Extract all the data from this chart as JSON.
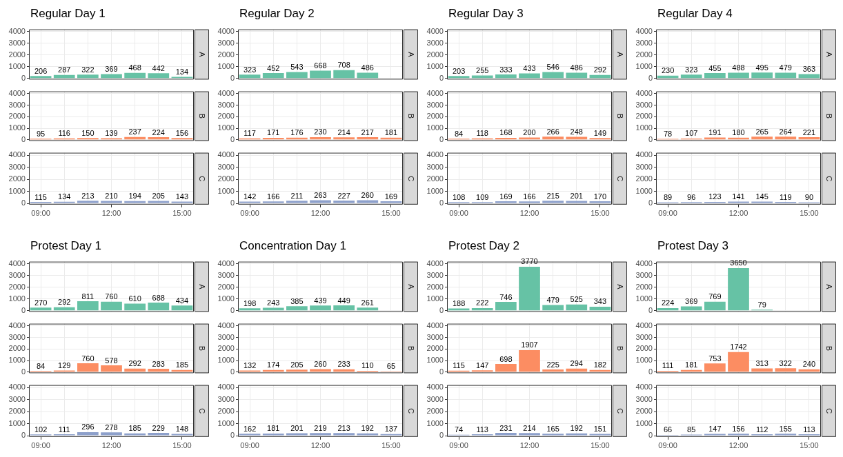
{
  "chart_data": [
    {
      "type": "bar",
      "title": "Regular Day 1",
      "y2label": "A",
      "categories": [
        null,
        null,
        null,
        null,
        null,
        null,
        null
      ],
      "values": [
        206,
        287,
        322,
        369,
        468,
        442,
        134
      ],
      "color": "#66c2a5",
      "ylim": [
        -100,
        4200
      ],
      "yticks": [
        0,
        1000,
        2000,
        3000,
        4000
      ],
      "data_labels": true,
      "grid": true
    },
    {
      "type": "bar",
      "y2label": "B",
      "categories": [
        null,
        null,
        null,
        null,
        null,
        null,
        null
      ],
      "values": [
        95,
        116,
        150,
        139,
        237,
        224,
        156
      ],
      "color": "#fc8d62",
      "ylim": [
        -100,
        4200
      ],
      "yticks": [
        0,
        1000,
        2000,
        3000,
        4000
      ],
      "data_labels": true,
      "grid": true
    },
    {
      "type": "bar",
      "y2label": "C",
      "categories": [
        "09:00",
        null,
        null,
        "12:00",
        null,
        null,
        "15:00"
      ],
      "values": [
        115,
        134,
        213,
        210,
        194,
        205,
        143
      ],
      "color": "#8da0cb",
      "ylim": [
        -100,
        4200
      ],
      "yticks": [
        0,
        1000,
        2000,
        3000,
        4000
      ],
      "data_labels": true,
      "grid": true
    },
    {
      "type": "bar",
      "title": "Regular Day 2",
      "y2label": "A",
      "categories": [
        null,
        null,
        null,
        null,
        null,
        null,
        null
      ],
      "values": [
        323,
        452,
        543,
        668,
        708,
        486,
        null
      ],
      "color": "#66c2a5",
      "ylim": [
        -100,
        4200
      ],
      "yticks": [
        0,
        1000,
        2000,
        3000,
        4000
      ],
      "data_labels": true,
      "grid": true
    },
    {
      "type": "bar",
      "y2label": "B",
      "categories": [
        null,
        null,
        null,
        null,
        null,
        null,
        null
      ],
      "values": [
        117,
        171,
        176,
        230,
        214,
        217,
        181
      ],
      "color": "#fc8d62",
      "ylim": [
        -100,
        4200
      ],
      "yticks": [
        0,
        1000,
        2000,
        3000,
        4000
      ],
      "data_labels": true,
      "grid": true
    },
    {
      "type": "bar",
      "y2label": "C",
      "categories": [
        "09:00",
        null,
        null,
        "12:00",
        null,
        null,
        "15:00"
      ],
      "values": [
        142,
        166,
        211,
        263,
        227,
        260,
        169
      ],
      "color": "#8da0cb",
      "ylim": [
        -100,
        4200
      ],
      "yticks": [
        0,
        1000,
        2000,
        3000,
        4000
      ],
      "data_labels": true,
      "grid": true
    },
    {
      "type": "bar",
      "title": "Regular Day 3",
      "y2label": "A",
      "categories": [
        null,
        null,
        null,
        null,
        null,
        null,
        null
      ],
      "values": [
        203,
        255,
        333,
        433,
        546,
        486,
        292
      ],
      "color": "#66c2a5",
      "ylim": [
        -100,
        4200
      ],
      "yticks": [
        0,
        1000,
        2000,
        3000,
        4000
      ],
      "data_labels": true,
      "grid": true
    },
    {
      "type": "bar",
      "y2label": "B",
      "categories": [
        null,
        null,
        null,
        null,
        null,
        null,
        null
      ],
      "values": [
        84,
        118,
        168,
        200,
        266,
        248,
        149
      ],
      "color": "#fc8d62",
      "ylim": [
        -100,
        4200
      ],
      "yticks": [
        0,
        1000,
        2000,
        3000,
        4000
      ],
      "data_labels": true,
      "grid": true
    },
    {
      "type": "bar",
      "y2label": "C",
      "categories": [
        "09:00",
        null,
        null,
        "12:00",
        null,
        null,
        "15:00"
      ],
      "values": [
        108,
        109,
        169,
        166,
        215,
        201,
        170
      ],
      "color": "#8da0cb",
      "ylim": [
        -100,
        4200
      ],
      "yticks": [
        0,
        1000,
        2000,
        3000,
        4000
      ],
      "data_labels": true,
      "grid": true
    },
    {
      "type": "bar",
      "title": "Regular Day 4",
      "y2label": "A",
      "categories": [
        null,
        null,
        null,
        null,
        null,
        null,
        null
      ],
      "values": [
        230,
        323,
        455,
        488,
        495,
        479,
        363
      ],
      "color": "#66c2a5",
      "ylim": [
        -100,
        4200
      ],
      "yticks": [
        0,
        1000,
        2000,
        3000,
        4000
      ],
      "data_labels": true,
      "grid": true
    },
    {
      "type": "bar",
      "y2label": "B",
      "categories": [
        null,
        null,
        null,
        null,
        null,
        null,
        null
      ],
      "values": [
        78,
        107,
        191,
        180,
        265,
        264,
        221
      ],
      "color": "#fc8d62",
      "ylim": [
        -100,
        4200
      ],
      "yticks": [
        0,
        1000,
        2000,
        3000,
        4000
      ],
      "data_labels": true,
      "grid": true
    },
    {
      "type": "bar",
      "y2label": "C",
      "categories": [
        "09:00",
        null,
        null,
        "12:00",
        null,
        null,
        "15:00"
      ],
      "values": [
        89,
        96,
        123,
        141,
        145,
        119,
        90
      ],
      "color": "#8da0cb",
      "ylim": [
        -100,
        4200
      ],
      "yticks": [
        0,
        1000,
        2000,
        3000,
        4000
      ],
      "data_labels": true,
      "grid": true
    },
    {
      "type": "bar",
      "title": "Protest Day 1",
      "y2label": "A",
      "categories": [
        null,
        null,
        null,
        null,
        null,
        null,
        null
      ],
      "values": [
        270,
        292,
        811,
        760,
        610,
        688,
        434
      ],
      "color": "#66c2a5",
      "ylim": [
        -100,
        4200
      ],
      "yticks": [
        0,
        1000,
        2000,
        3000,
        4000
      ],
      "data_labels": true,
      "grid": true
    },
    {
      "type": "bar",
      "y2label": "B",
      "categories": [
        null,
        null,
        null,
        null,
        null,
        null,
        null
      ],
      "values": [
        84,
        129,
        760,
        578,
        292,
        283,
        185
      ],
      "color": "#fc8d62",
      "ylim": [
        -100,
        4200
      ],
      "yticks": [
        0,
        1000,
        2000,
        3000,
        4000
      ],
      "data_labels": true,
      "grid": true
    },
    {
      "type": "bar",
      "y2label": "C",
      "categories": [
        "09:00",
        null,
        null,
        "12:00",
        null,
        null,
        "15:00"
      ],
      "values": [
        102,
        111,
        296,
        278,
        185,
        229,
        148
      ],
      "color": "#8da0cb",
      "ylim": [
        -100,
        4200
      ],
      "yticks": [
        0,
        1000,
        2000,
        3000,
        4000
      ],
      "data_labels": true,
      "grid": true
    },
    {
      "type": "bar",
      "title": "Concentration Day 1",
      "y2label": "A",
      "categories": [
        null,
        null,
        null,
        null,
        null,
        null,
        null
      ],
      "values": [
        198,
        243,
        385,
        439,
        449,
        261,
        null
      ],
      "color": "#66c2a5",
      "ylim": [
        -100,
        4200
      ],
      "yticks": [
        0,
        1000,
        2000,
        3000,
        4000
      ],
      "data_labels": true,
      "grid": true
    },
    {
      "type": "bar",
      "y2label": "B",
      "categories": [
        null,
        null,
        null,
        null,
        null,
        null,
        null
      ],
      "values": [
        132,
        174,
        205,
        260,
        233,
        110,
        65
      ],
      "color": "#fc8d62",
      "ylim": [
        -100,
        4200
      ],
      "yticks": [
        0,
        1000,
        2000,
        3000,
        4000
      ],
      "data_labels": true,
      "grid": true
    },
    {
      "type": "bar",
      "y2label": "C",
      "categories": [
        "09:00",
        null,
        null,
        "12:00",
        null,
        null,
        "15:00"
      ],
      "values": [
        162,
        181,
        201,
        219,
        213,
        192,
        137
      ],
      "color": "#8da0cb",
      "ylim": [
        -100,
        4200
      ],
      "yticks": [
        0,
        1000,
        2000,
        3000,
        4000
      ],
      "data_labels": true,
      "grid": true
    },
    {
      "type": "bar",
      "title": "Protest Day 2",
      "y2label": "A",
      "categories": [
        null,
        null,
        null,
        null,
        null,
        null,
        null
      ],
      "values": [
        188,
        222,
        746,
        3770,
        479,
        525,
        343
      ],
      "color": "#66c2a5",
      "ylim": [
        -100,
        4200
      ],
      "yticks": [
        0,
        1000,
        2000,
        3000,
        4000
      ],
      "data_labels": true,
      "grid": true
    },
    {
      "type": "bar",
      "y2label": "B",
      "categories": [
        null,
        null,
        null,
        null,
        null,
        null,
        null
      ],
      "values": [
        115,
        147,
        698,
        1907,
        225,
        294,
        182
      ],
      "color": "#fc8d62",
      "ylim": [
        -100,
        4200
      ],
      "yticks": [
        0,
        1000,
        2000,
        3000,
        4000
      ],
      "data_labels": true,
      "grid": true
    },
    {
      "type": "bar",
      "y2label": "C",
      "categories": [
        "09:00",
        null,
        null,
        "12:00",
        null,
        null,
        "15:00"
      ],
      "values": [
        74,
        113,
        231,
        214,
        165,
        192,
        151
      ],
      "color": "#8da0cb",
      "ylim": [
        -100,
        4200
      ],
      "yticks": [
        0,
        1000,
        2000,
        3000,
        4000
      ],
      "data_labels": true,
      "grid": true
    },
    {
      "type": "bar",
      "title": "Protest Day 3",
      "y2label": "A",
      "categories": [
        null,
        null,
        null,
        null,
        null,
        null,
        null
      ],
      "values": [
        224,
        369,
        769,
        3650,
        79,
        null,
        null
      ],
      "color": "#66c2a5",
      "ylim": [
        -100,
        4200
      ],
      "yticks": [
        0,
        1000,
        2000,
        3000,
        4000
      ],
      "data_labels": true,
      "grid": true
    },
    {
      "type": "bar",
      "y2label": "B",
      "categories": [
        null,
        null,
        null,
        null,
        null,
        null,
        null
      ],
      "values": [
        111,
        181,
        753,
        1742,
        313,
        322,
        240
      ],
      "color": "#fc8d62",
      "ylim": [
        -100,
        4200
      ],
      "yticks": [
        0,
        1000,
        2000,
        3000,
        4000
      ],
      "data_labels": true,
      "grid": true
    },
    {
      "type": "bar",
      "y2label": "C",
      "categories": [
        "09:00",
        null,
        null,
        "12:00",
        null,
        null,
        "15:00"
      ],
      "values": [
        66,
        85,
        147,
        156,
        112,
        155,
        113
      ],
      "color": "#8da0cb",
      "ylim": [
        -100,
        4200
      ],
      "yticks": [
        0,
        1000,
        2000,
        3000,
        4000
      ],
      "data_labels": true,
      "grid": true
    }
  ]
}
